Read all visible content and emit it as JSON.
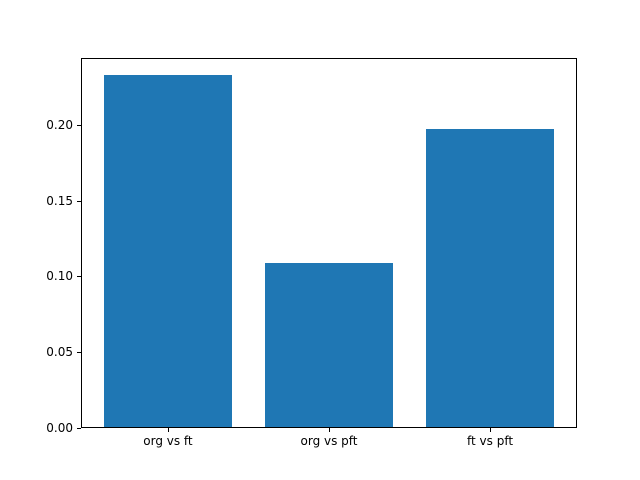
{
  "chart_data": {
    "type": "bar",
    "title": "",
    "xlabel": "",
    "ylabel": "",
    "categories": [
      "org vs ft",
      "org vs pft",
      "ft vs pft"
    ],
    "values": [
      0.233,
      0.109,
      0.197
    ],
    "yticks": [
      0.0,
      0.05,
      0.1,
      0.15,
      0.2
    ],
    "ytick_labels": [
      "0.00",
      "0.05",
      "0.10",
      "0.15",
      "0.20"
    ],
    "ylim": [
      0,
      0.244
    ],
    "bar_color": "#1f77b4",
    "axis_color": "#000000",
    "text_color": "#000000",
    "background_color": "#ffffff",
    "grid": false,
    "legend_position": "none"
  }
}
